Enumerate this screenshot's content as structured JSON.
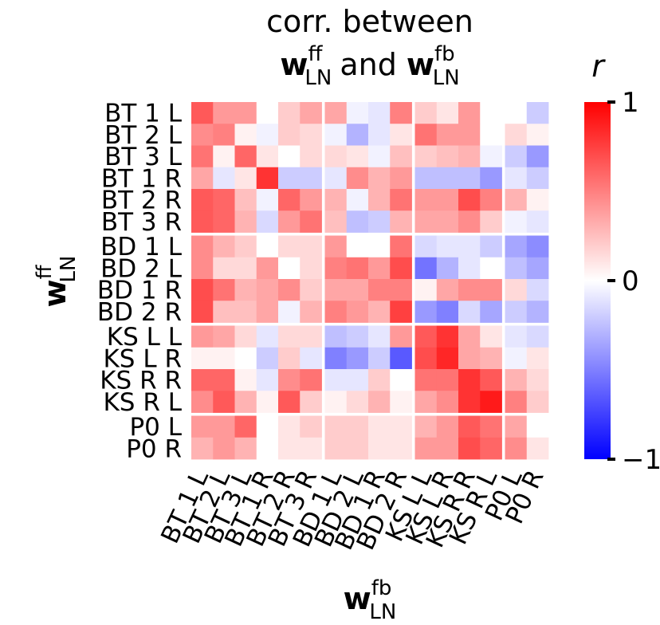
{
  "chart_data": {
    "type": "heatmap",
    "title_line1": "corr. between",
    "title_line2": {
      "left_bold": "w",
      "left_sup": "ff",
      "left_sub": "LN",
      "mid": "and",
      "right_bold": "w",
      "right_sup": "fb",
      "right_sub": "LN"
    },
    "ylabel": {
      "bold": "w",
      "sup": "ff",
      "sub": "LN"
    },
    "xlabel": {
      "bold": "w",
      "sup": "fb",
      "sub": "LN"
    },
    "colorbar": {
      "label": "r",
      "ticks": [
        {
          "value": 1,
          "label": "1"
        },
        {
          "value": 0,
          "label": "0"
        },
        {
          "value": -1,
          "label": "−1"
        }
      ],
      "range": [
        -1,
        1
      ],
      "colormap": "bwr",
      "color_min": "#0000ff",
      "color_mid": "#ffffff",
      "color_max": "#ff0000"
    },
    "rows": [
      "BT 1 L",
      "BT 2 L",
      "BT 3 L",
      "BT 1 R",
      "BT 2 R",
      "BT 3 R",
      "BD 1 L",
      "BD 2 L",
      "BD 1 R",
      "BD 2 R",
      "KS L L",
      "KS L R",
      "KS R R",
      "KS R L",
      "P0 L",
      "P0 R"
    ],
    "cols": [
      "BT 1 L",
      "BT 2 L",
      "BT 3 L",
      "BT 1 R",
      "BT 2 R",
      "BT 3 R",
      "BD 1 L",
      "BD 2 L",
      "BD 1 R",
      "BD 2 R",
      "KS L L",
      "KS L R",
      "KS R R",
      "KS R L",
      "P0 L",
      "P0 R"
    ],
    "row_groups": [
      6,
      4,
      4,
      2
    ],
    "col_groups": [
      6,
      4,
      4,
      2
    ],
    "values": [
      [
        0.65,
        0.4,
        0.4,
        0.0,
        0.2,
        0.35,
        0.35,
        -0.05,
        -0.1,
        0.5,
        0.2,
        0.1,
        0.4,
        0.0,
        0.0,
        -0.2
      ],
      [
        0.45,
        0.5,
        0.05,
        -0.05,
        0.2,
        0.15,
        -0.05,
        -0.3,
        -0.1,
        0.1,
        0.55,
        0.4,
        0.4,
        0.0,
        0.15,
        0.05
      ],
      [
        0.55,
        0.05,
        0.6,
        0.1,
        0.0,
        0.15,
        0.15,
        0.1,
        -0.05,
        0.25,
        0.2,
        0.25,
        0.3,
        -0.05,
        -0.2,
        -0.4
      ],
      [
        0.35,
        -0.1,
        0.1,
        0.8,
        -0.2,
        -0.2,
        -0.1,
        0.45,
        0.3,
        0.4,
        -0.25,
        -0.25,
        -0.25,
        -0.4,
        -0.1,
        -0.2
      ],
      [
        0.65,
        0.6,
        0.25,
        -0.05,
        0.6,
        0.4,
        0.3,
        -0.05,
        0.3,
        0.55,
        0.4,
        0.4,
        0.7,
        0.5,
        0.3,
        0.05
      ],
      [
        0.65,
        0.6,
        0.3,
        -0.15,
        0.4,
        0.55,
        0.25,
        -0.25,
        -0.2,
        0.3,
        0.35,
        0.35,
        0.45,
        0.2,
        -0.05,
        -0.1
      ],
      [
        0.45,
        0.3,
        0.2,
        0.0,
        0.15,
        0.15,
        0.4,
        0.0,
        0.0,
        0.55,
        -0.15,
        -0.1,
        -0.1,
        -0.2,
        -0.35,
        -0.45
      ],
      [
        0.45,
        0.15,
        0.15,
        0.4,
        0.0,
        0.15,
        0.5,
        0.55,
        0.4,
        0.7,
        -0.55,
        -0.3,
        -0.1,
        0.0,
        -0.25,
        -0.35
      ],
      [
        0.7,
        0.55,
        0.3,
        0.35,
        0.45,
        0.2,
        0.35,
        0.35,
        0.5,
        0.5,
        0.05,
        0.35,
        0.45,
        0.45,
        0.15,
        -0.15
      ],
      [
        0.7,
        0.25,
        0.25,
        0.35,
        -0.05,
        0.3,
        0.5,
        0.4,
        0.3,
        0.75,
        -0.4,
        -0.5,
        -0.15,
        -0.35,
        -0.2,
        -0.3
      ],
      [
        0.4,
        0.35,
        0.15,
        -0.1,
        0.15,
        0.15,
        -0.25,
        -0.2,
        -0.1,
        0.4,
        0.65,
        0.8,
        0.35,
        0.1,
        -0.1,
        -0.15
      ],
      [
        0.05,
        0.05,
        0.0,
        -0.2,
        0.2,
        -0.1,
        -0.5,
        -0.4,
        -0.2,
        -0.65,
        0.7,
        0.85,
        0.35,
        0.3,
        -0.05,
        0.1
      ],
      [
        0.6,
        0.6,
        0.05,
        -0.1,
        0.45,
        0.55,
        -0.1,
        -0.1,
        0.2,
        0.0,
        0.55,
        0.55,
        0.8,
        0.65,
        0.3,
        0.15
      ],
      [
        0.45,
        0.65,
        0.3,
        0.05,
        0.65,
        0.2,
        0.05,
        0.15,
        0.3,
        0.05,
        0.35,
        0.45,
        0.8,
        0.9,
        0.5,
        0.2
      ],
      [
        0.4,
        0.4,
        0.6,
        0.0,
        0.1,
        0.2,
        0.2,
        0.2,
        0.1,
        0.1,
        0.3,
        0.4,
        0.65,
        0.55,
        0.35,
        0.0
      ],
      [
        0.3,
        0.4,
        0.3,
        0.0,
        0.1,
        0.1,
        0.2,
        0.2,
        0.1,
        0.1,
        0.4,
        0.4,
        0.7,
        0.6,
        0.45,
        0.1
      ]
    ]
  }
}
